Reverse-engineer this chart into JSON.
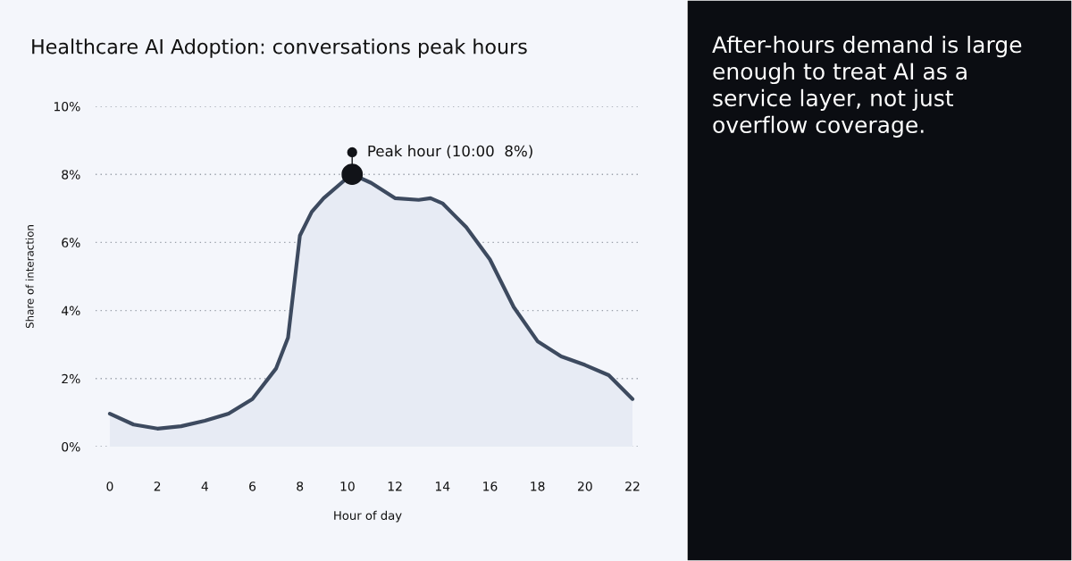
{
  "chart_data": {
    "type": "area",
    "title": "Healthcare AI Adoption: conversations peak hours",
    "xlabel": "Hour of day",
    "ylabel": "Share of interaction",
    "x": [
      0,
      1,
      2,
      3,
      4,
      5,
      6,
      7,
      7.5,
      8,
      8.5,
      9,
      10,
      10.2,
      11,
      12,
      13,
      13.5,
      14,
      15,
      16,
      17,
      18,
      19,
      20,
      21,
      22
    ],
    "series": [
      {
        "color": "#3d4a5f",
        "values": [
          0.97,
          0.65,
          0.53,
          0.6,
          0.76,
          0.97,
          1.4,
          2.3,
          3.2,
          6.2,
          6.9,
          7.3,
          7.9,
          8.0,
          7.75,
          7.3,
          7.25,
          7.3,
          7.15,
          6.45,
          5.5,
          4.1,
          3.1,
          2.65,
          2.4,
          2.1,
          1.4
        ]
      }
    ],
    "xlim": [
      -0.6,
      22.3
    ],
    "ylim": [
      0,
      10
    ],
    "xticks": [
      0,
      2,
      4,
      6,
      8,
      10,
      12,
      14,
      16,
      18,
      20,
      22
    ],
    "yticks": [
      {
        "value": 0,
        "label": "0%"
      },
      {
        "value": 2,
        "label": "2%"
      },
      {
        "value": 4,
        "label": "4%"
      },
      {
        "value": 6,
        "label": "6%"
      },
      {
        "value": 8,
        "label": "8%"
      },
      {
        "value": 10,
        "label": "10%"
      }
    ],
    "grid": "y",
    "annotations": [
      {
        "text": "Peak hour (10:00  8%)",
        "x": 10.2,
        "y": 8
      },
      "After-hours demand is large enough to treat AI as a service layer, not just overflow coverage."
    ]
  }
}
